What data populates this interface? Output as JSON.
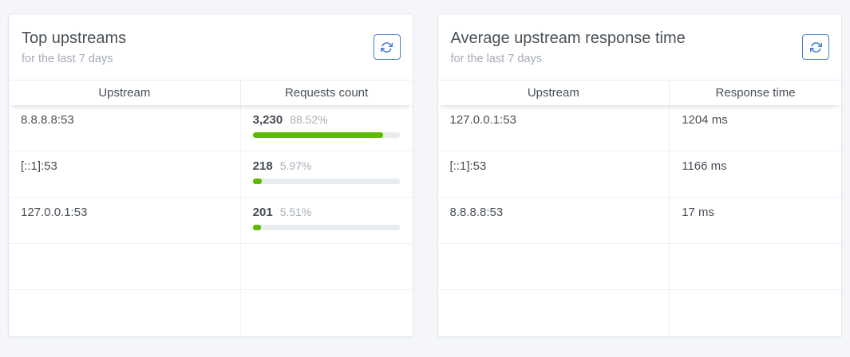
{
  "colors": {
    "page_background": "#f5f6fa",
    "accent_blue": "#467fcf",
    "progress_green": "#5eba00",
    "progress_track": "#e9ecef"
  },
  "cards": [
    {
      "title": "Top upstreams",
      "subtitle": "for the last 7 days",
      "refresh_icon": "refresh-icon",
      "columns": [
        "Upstream",
        "Requests count"
      ],
      "rows": [
        {
          "upstream": "8.8.8.8:53",
          "count": "3,230",
          "percent": "88.52%",
          "percent_value": 88.52
        },
        {
          "upstream": "[::1]:53",
          "count": "218",
          "percent": "5.97%",
          "percent_value": 5.97
        },
        {
          "upstream": "127.0.0.1:53",
          "count": "201",
          "percent": "5.51%",
          "percent_value": 5.51
        }
      ],
      "empty_row_count": 2
    },
    {
      "title": "Average upstream response time",
      "subtitle": "for the last 7 days",
      "refresh_icon": "refresh-icon",
      "columns": [
        "Upstream",
        "Response time"
      ],
      "rows": [
        {
          "upstream": "127.0.0.1:53",
          "time": "1204 ms"
        },
        {
          "upstream": "[::1]:53",
          "time": "1166 ms"
        },
        {
          "upstream": "8.8.8.8:53",
          "time": "17 ms"
        }
      ],
      "empty_row_count": 2
    }
  ]
}
